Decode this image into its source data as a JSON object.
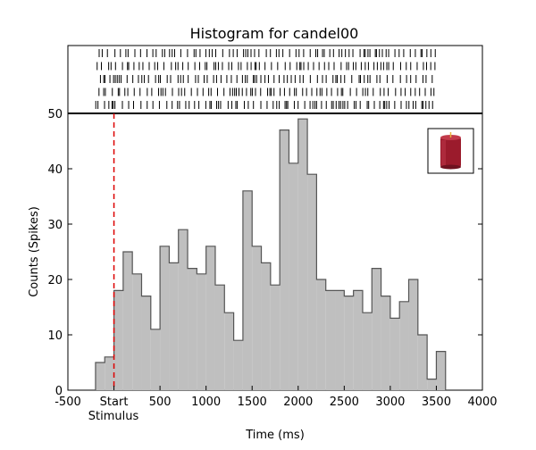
{
  "chart_data": {
    "type": "bar",
    "title": "Histogram for candel00",
    "xlabel": "Time (ms)",
    "ylabel": "Counts (Spikes)",
    "xlim": [
      -500,
      4000
    ],
    "ylim": [
      0,
      50
    ],
    "bin_width": 100,
    "bin_starts": [
      -200,
      -100,
      0,
      100,
      200,
      300,
      400,
      500,
      600,
      700,
      800,
      900,
      1000,
      1100,
      1200,
      1300,
      1400,
      1500,
      1600,
      1700,
      1800,
      1900,
      2000,
      2100,
      2200,
      2300,
      2400,
      2500,
      2600,
      2700,
      2800,
      2900,
      3000,
      3100,
      3200,
      3300,
      3400,
      3500
    ],
    "values": [
      5,
      6,
      18,
      25,
      21,
      17,
      11,
      26,
      23,
      29,
      22,
      21,
      26,
      19,
      14,
      9,
      36,
      26,
      23,
      19,
      47,
      41,
      49,
      39,
      20,
      18,
      18,
      17,
      18,
      14,
      22,
      17,
      13,
      16,
      20,
      10,
      2,
      7
    ],
    "x_ticks": [
      {
        "value": -500,
        "label": "-500"
      },
      {
        "value": 0,
        "label": "Start"
      },
      {
        "value": 500,
        "label": "500"
      },
      {
        "value": 1000,
        "label": "1000"
      },
      {
        "value": 1500,
        "label": "1500"
      },
      {
        "value": 2000,
        "label": "2000"
      },
      {
        "value": 2500,
        "label": "2500"
      },
      {
        "value": 3000,
        "label": "3000"
      },
      {
        "value": 3500,
        "label": "3500"
      },
      {
        "value": 4000,
        "label": "4000"
      }
    ],
    "y_ticks": [
      0,
      10,
      20,
      30,
      40,
      50
    ],
    "stimulus_label": "Stimulus",
    "stimulus_time": 0,
    "colors": {
      "bars": "#bfbfbf",
      "bar_edge": "#555555",
      "stimulus_line": "#dd0000",
      "raster": "#000000"
    },
    "raster_trials": 5,
    "raster_xlim": [
      -200,
      3500
    ],
    "thumbnail_icon": "candle-icon",
    "grid": false
  }
}
